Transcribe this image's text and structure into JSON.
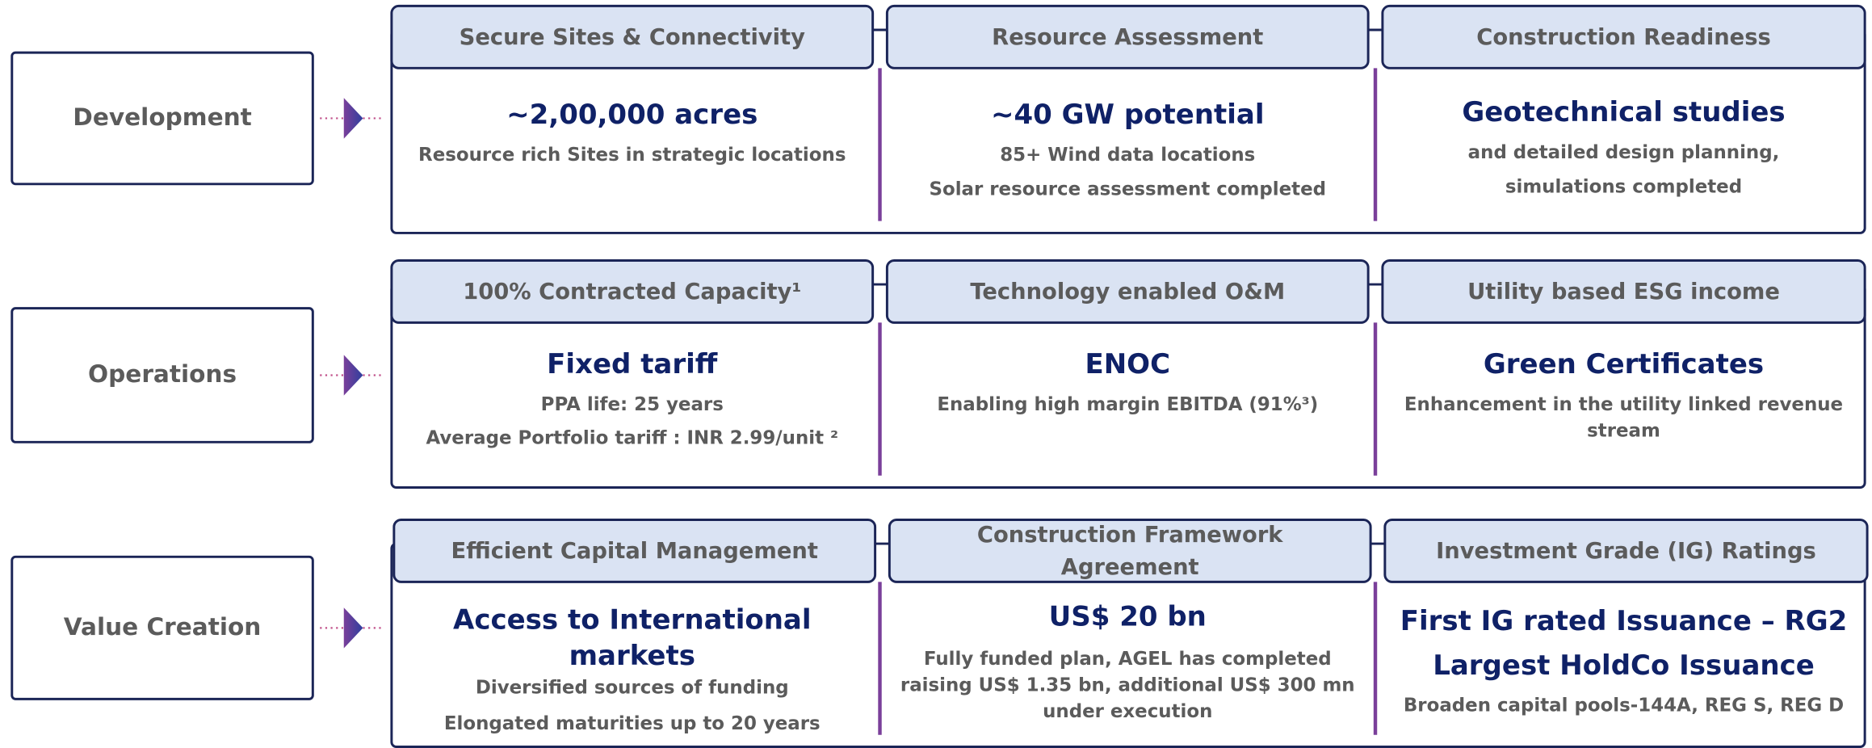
{
  "rows": [
    {
      "label": "Development",
      "columns": [
        {
          "header": [
            "Secure Sites & Connectivity"
          ],
          "headline": [
            "~2,00,000 acres"
          ],
          "lines": [
            "Resource rich Sites in strategic locations"
          ]
        },
        {
          "header": [
            "Resource Assessment"
          ],
          "headline": [
            "~40 GW potential"
          ],
          "lines": [
            "85+ Wind data locations",
            "Solar resource assessment completed"
          ]
        },
        {
          "header": [
            "Construction Readiness"
          ],
          "headline": [
            "Geotechnical studies"
          ],
          "lines": [
            "and detailed design planning,",
            "simulations completed"
          ]
        }
      ]
    },
    {
      "label": "Operations",
      "columns": [
        {
          "header": [
            "100% Contracted Capacity¹"
          ],
          "headline": [
            "Fixed tariff"
          ],
          "lines": [
            "PPA life: 25 years",
            "Average Portfolio tariff : INR 2.99/unit ²"
          ]
        },
        {
          "header": [
            "Technology enabled O&M"
          ],
          "headline": [
            "ENOC"
          ],
          "lines": [
            "Enabling high margin EBITDA (91%³)"
          ]
        },
        {
          "header": [
            "Utility based ESG income"
          ],
          "headline": [
            "Green Certificates"
          ],
          "lines": [
            "Enhancement in the utility linked revenue",
            "stream"
          ]
        }
      ]
    },
    {
      "label": "Value Creation",
      "columns": [
        {
          "header": [
            "Efficient Capital Management"
          ],
          "headline": [
            "Access to International",
            "markets"
          ],
          "lines": [
            "Diversified sources of funding",
            "Elongated maturities up to 20 years"
          ]
        },
        {
          "header": [
            "Construction Framework",
            "Agreement"
          ],
          "headline": [
            "US$ 20 bn"
          ],
          "lines": [
            "Fully funded plan, AGEL has completed",
            "raising US$ 1.35 bn, additional US$ 300 mn",
            "under execution"
          ]
        },
        {
          "header": [
            "Investment Grade (IG) Ratings"
          ],
          "headline": [
            "First IG rated Issuance – RG2",
            "Largest HoldCo Issuance"
          ],
          "lines": [
            "Broaden capital pools-144A, REG S, REG D"
          ]
        }
      ]
    }
  ]
}
